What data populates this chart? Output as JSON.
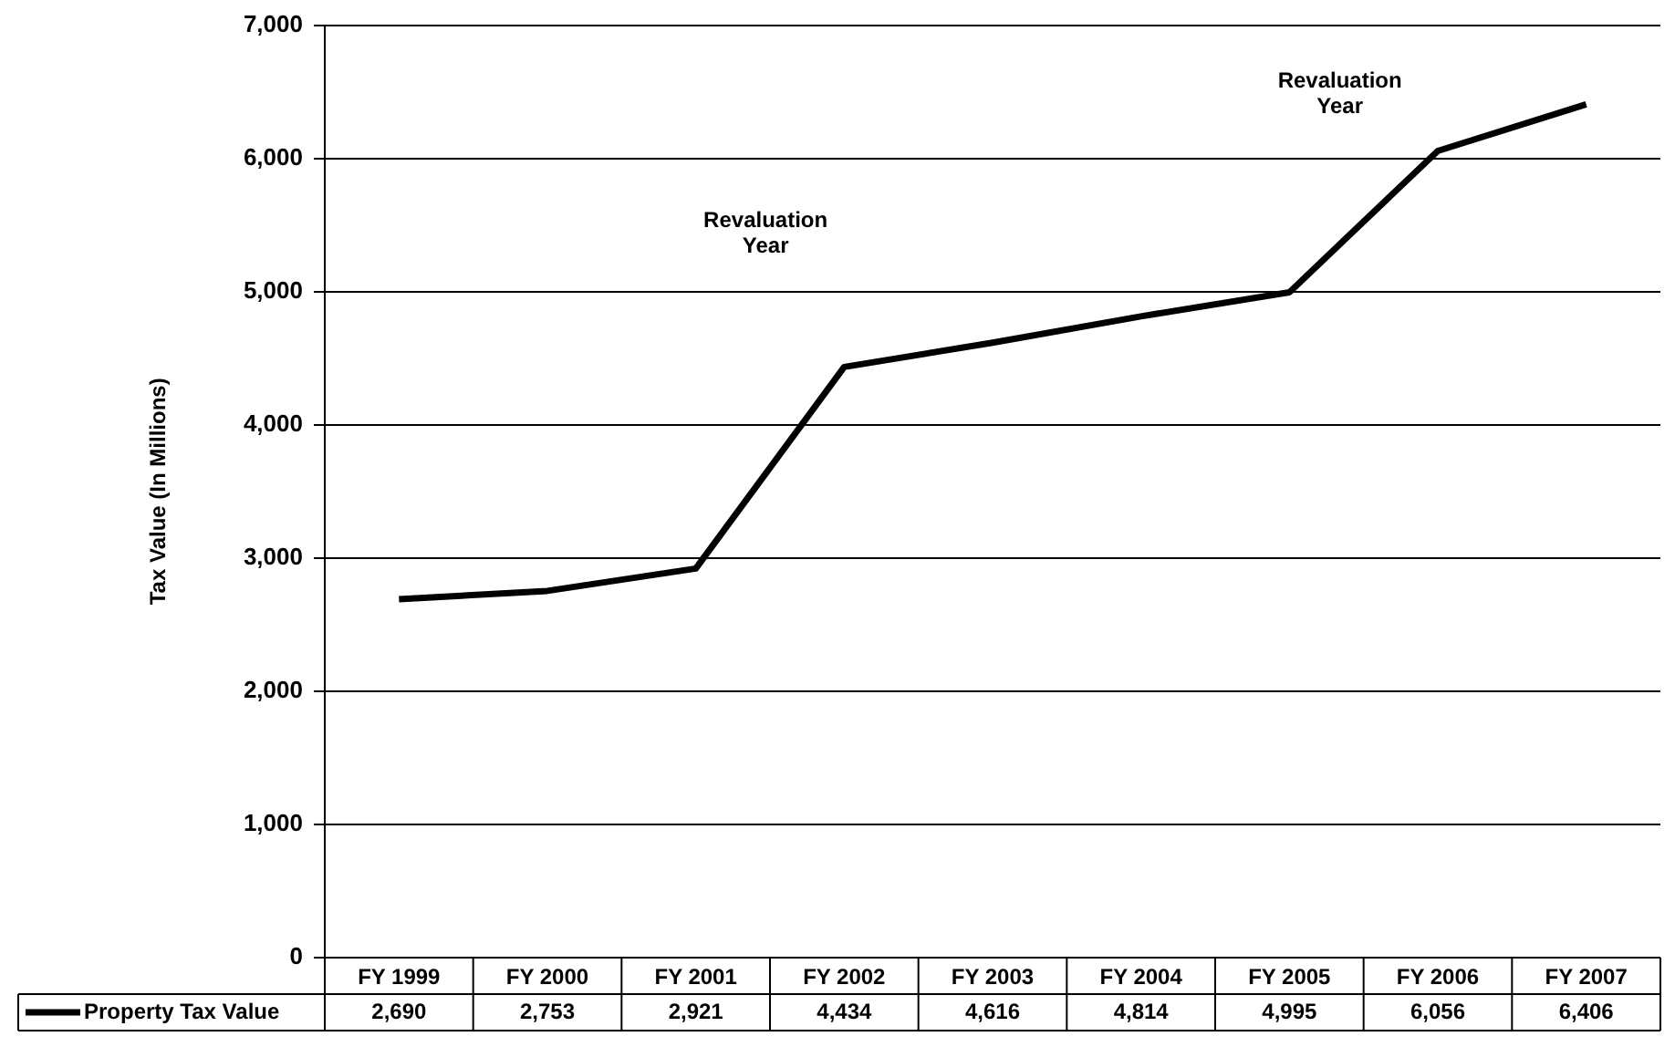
{
  "chart_data": {
    "type": "line",
    "ylabel": "Tax Value (In Millions)",
    "categories": [
      "FY 1999",
      "FY 2000",
      "FY 2001",
      "FY 2002",
      "FY 2003",
      "FY 2004",
      "FY 2005",
      "FY 2006",
      "FY 2007"
    ],
    "series": [
      {
        "name": "Property Tax Value",
        "color": "#000000",
        "values": [
          2690,
          2753,
          2921,
          4434,
          4616,
          4814,
          4995,
          6056,
          6406
        ],
        "value_labels": [
          "2,690",
          "2,753",
          "2,921",
          "4,434",
          "4,616",
          "4,814",
          "4,995",
          "6,056",
          "6,406"
        ]
      }
    ],
    "ylim": [
      0,
      7000
    ],
    "yticks": [
      {
        "value": 0,
        "label": "0"
      },
      {
        "value": 1000,
        "label": "1,000"
      },
      {
        "value": 2000,
        "label": "2,000"
      },
      {
        "value": 3000,
        "label": "3,000"
      },
      {
        "value": 4000,
        "label": "4,000"
      },
      {
        "value": 5000,
        "label": "5,000"
      },
      {
        "value": 6000,
        "label": "6,000"
      },
      {
        "value": 7000,
        "label": "7,000"
      }
    ],
    "grid": "y",
    "legend": "bottom",
    "marker": "none",
    "line_style": "solid",
    "annotations": [
      "Revaluation Year",
      "Revaluation Year"
    ]
  }
}
